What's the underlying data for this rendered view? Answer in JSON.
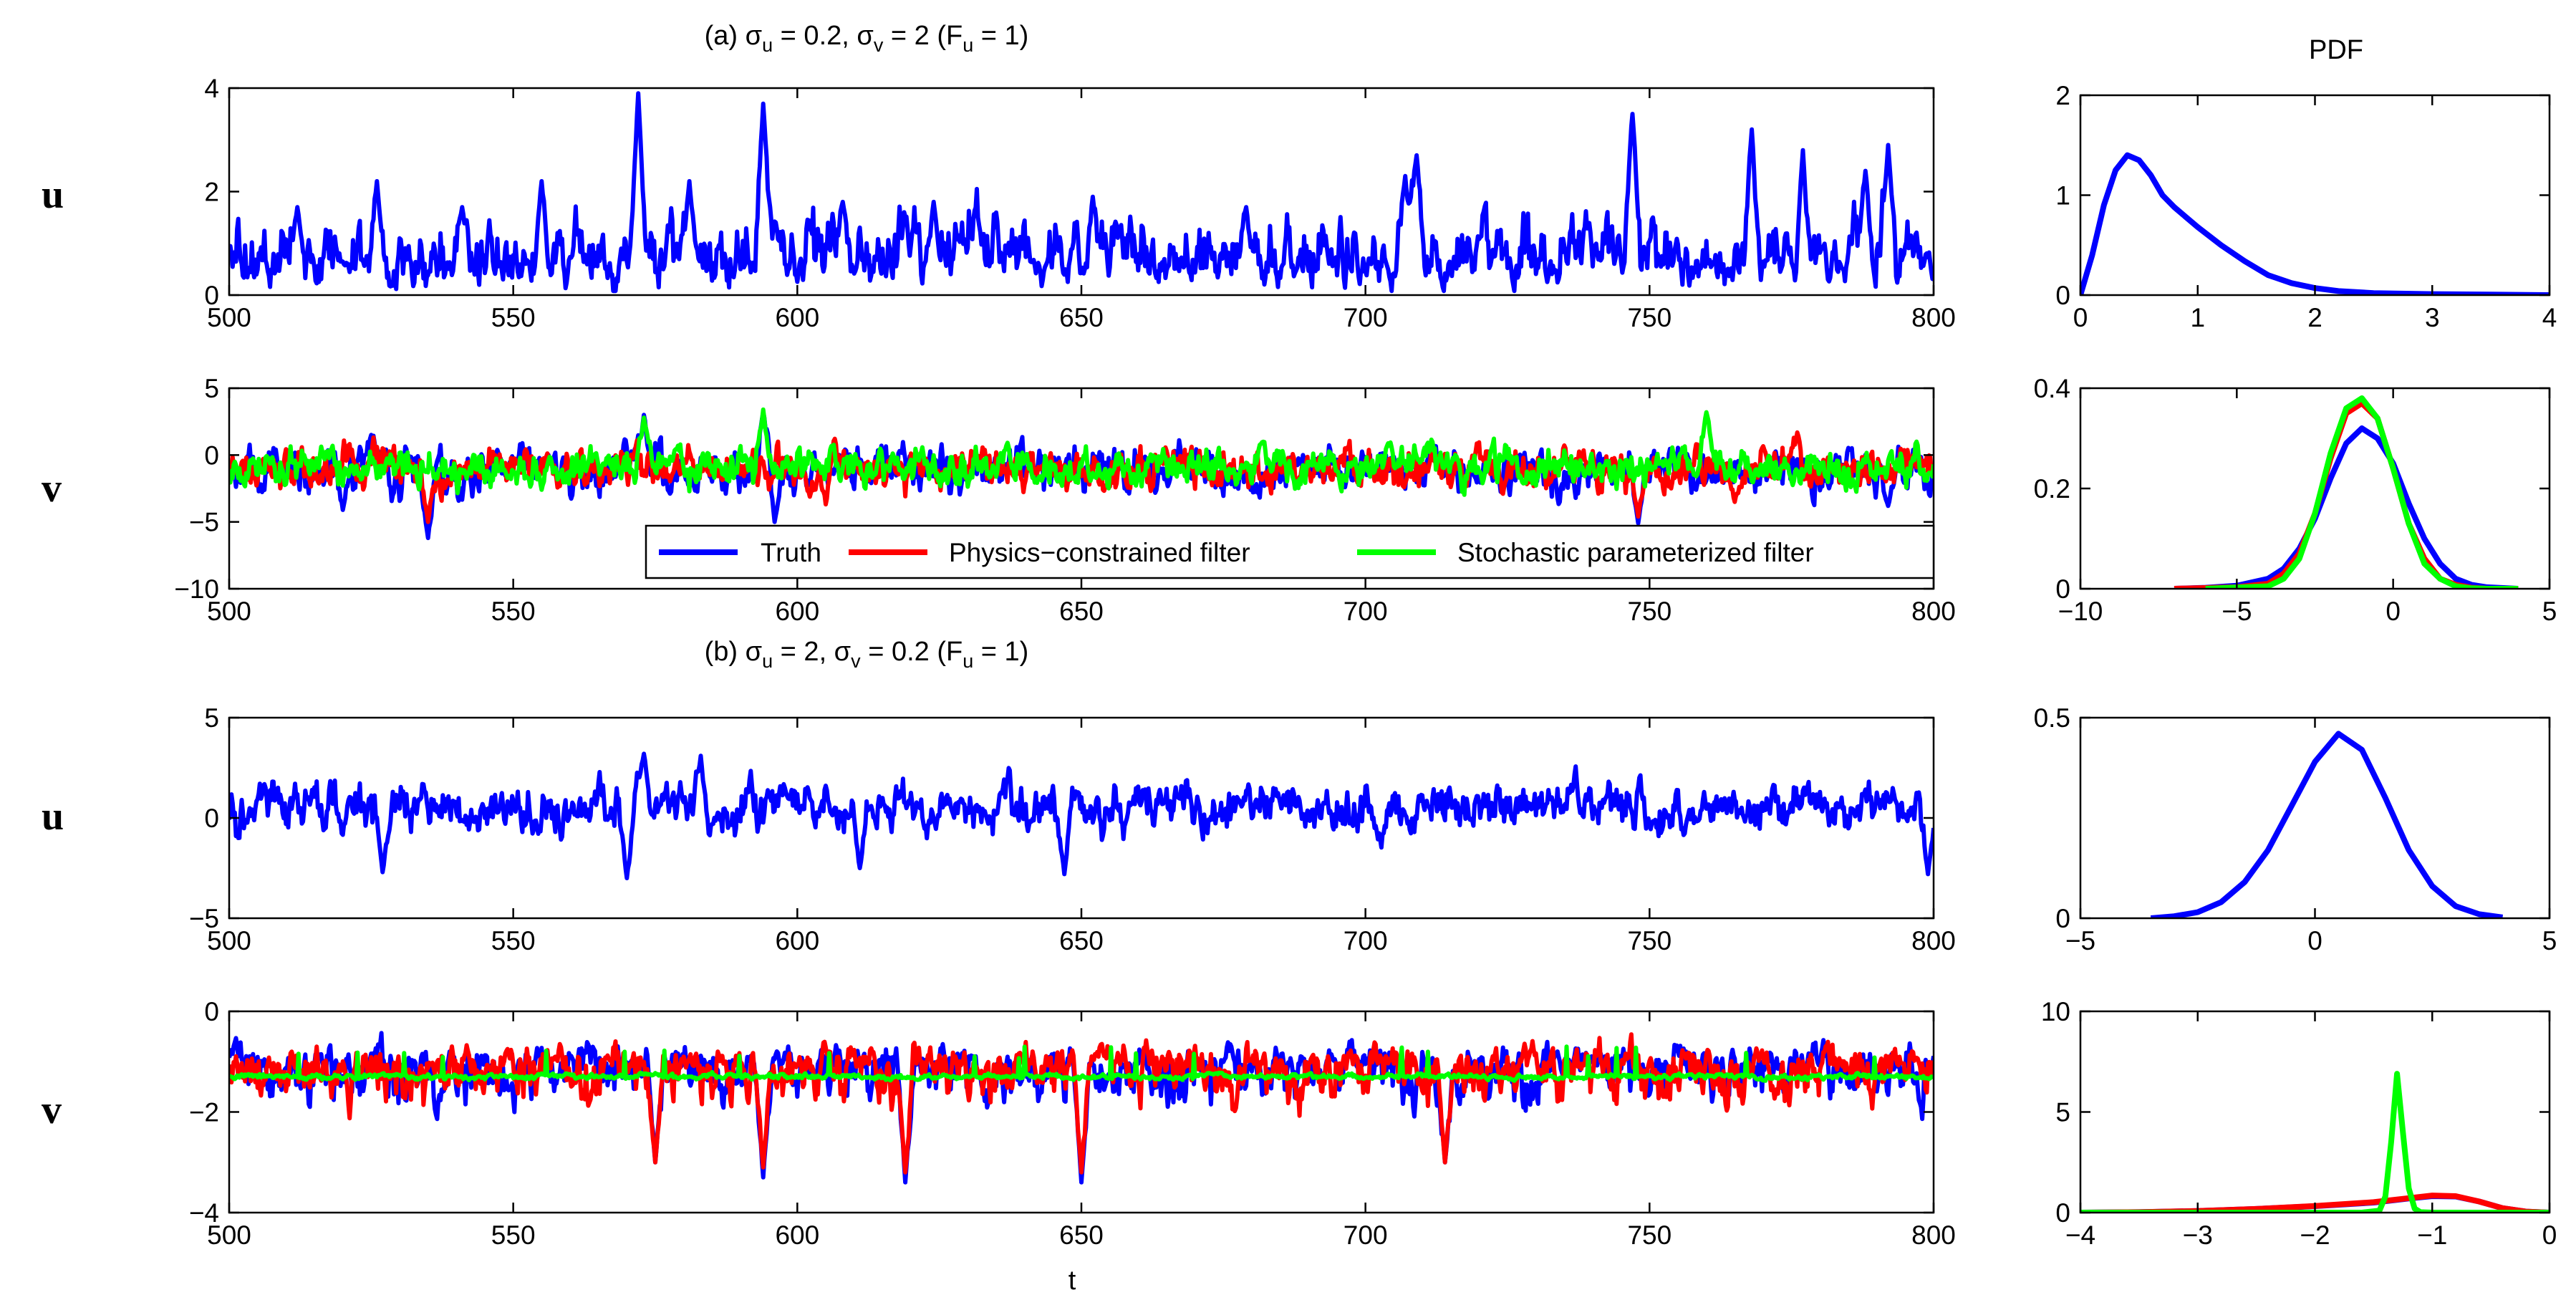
{
  "titles": {
    "a": {
      "prefix": "(a)",
      "su": "0.2",
      "sv": "2",
      "fu": "1"
    },
    "b": {
      "prefix": "(b)",
      "su": "2",
      "sv": "0.2",
      "fu": "1"
    },
    "pdf": "PDF",
    "sigma": "σ",
    "u": "u",
    "v": "v",
    "F": "F"
  },
  "legend": [
    "Truth",
    "Physics−constrained filter",
    "Stochastic parameterized filter"
  ],
  "colors": {
    "truth": "#0000ff",
    "physics": "#ff0000",
    "stochastic": "#00ff00"
  },
  "chart_data": [
    {
      "id": "a-u-ts",
      "type": "line",
      "row_label": "u",
      "xlabel": "",
      "xlim": [
        500,
        800
      ],
      "ylim": [
        0,
        4
      ],
      "xticks": [
        "500",
        "550",
        "600",
        "650",
        "700",
        "750",
        "800"
      ],
      "yticks": [
        "0",
        "2",
        "4"
      ],
      "series": [
        {
          "name": "Truth",
          "color": "#0000ff",
          "kind": "pos",
          "mean": 0.7,
          "spread": 0.45,
          "spikes": [
            [
              512,
              1.7
            ],
            [
              526,
              2.2
            ],
            [
              541,
              1.7
            ],
            [
              555,
              2.2
            ],
            [
              572,
              3.9
            ],
            [
              581,
              2.2
            ],
            [
              594,
              3.7
            ],
            [
              608,
              1.8
            ],
            [
              624,
              1.8
            ],
            [
              652,
              1.9
            ],
            [
              679,
              1.7
            ],
            [
              707,
              2.3
            ],
            [
              709,
              2.7
            ],
            [
              747,
              3.5
            ],
            [
              768,
              3.2
            ],
            [
              777,
              2.8
            ],
            [
              788,
              2.4
            ],
            [
              792,
              2.9
            ]
          ]
        }
      ]
    },
    {
      "id": "a-v-ts",
      "type": "line",
      "row_label": "v",
      "xlabel": "",
      "xlim": [
        500,
        800
      ],
      "ylim": [
        -10,
        5
      ],
      "xticks": [
        "500",
        "550",
        "600",
        "650",
        "700",
        "750",
        "800"
      ],
      "yticks": [
        "-10",
        "-5",
        "0",
        "5"
      ],
      "legend_position": "bottom-right",
      "series": [
        {
          "name": "Truth",
          "color": "#0000ff",
          "kind": "noise",
          "mean": -1.0,
          "spread": 1.6,
          "spikes": [
            [
              535,
              -6.2
            ],
            [
              520,
              -4.1
            ],
            [
              596,
              -5.0
            ],
            [
              748,
              -5.1
            ],
            [
              792,
              -3.8
            ],
            [
              573,
              3.0
            ],
            [
              594,
              3.2
            ]
          ]
        },
        {
          "name": "Physics-constrained filter",
          "color": "#ff0000",
          "kind": "noise",
          "mean": -1.0,
          "spread": 1.45,
          "spikes": [
            [
              535,
              -5.0
            ],
            [
              748,
              -4.6
            ],
            [
              765,
              -3.5
            ]
          ]
        },
        {
          "name": "Stochastic parameterized filter",
          "color": "#00ff00",
          "kind": "noise",
          "mean": -0.9,
          "spread": 1.3,
          "spikes": [
            [
              594,
              3.4
            ],
            [
              573,
              2.8
            ],
            [
              760,
              3.2
            ]
          ]
        }
      ]
    },
    {
      "id": "b-u-ts",
      "type": "line",
      "row_label": "u",
      "xlabel": "",
      "xlim": [
        500,
        800
      ],
      "ylim": [
        -5,
        5
      ],
      "xticks": [
        "500",
        "550",
        "600",
        "650",
        "700",
        "750",
        "800"
      ],
      "yticks": [
        "-5",
        "0",
        "5"
      ],
      "series": [
        {
          "name": "Truth",
          "color": "#0000ff",
          "kind": "noise",
          "mean": 0.5,
          "spread": 1.1,
          "spikes": [
            [
              570,
              -3.0
            ],
            [
              527,
              -2.7
            ],
            [
              647,
              -2.8
            ],
            [
              611,
              -2.5
            ],
            [
              573,
              3.2
            ],
            [
              583,
              3.1
            ],
            [
              799,
              -2.8
            ]
          ]
        }
      ]
    },
    {
      "id": "b-v-ts",
      "type": "line",
      "row_label": "v",
      "xlabel": "t",
      "xlim": [
        500,
        800
      ],
      "ylim": [
        -4,
        0
      ],
      "xticks": [
        "500",
        "550",
        "600",
        "650",
        "700",
        "750",
        "800"
      ],
      "yticks": [
        "-4",
        "-2",
        "0"
      ],
      "series": [
        {
          "name": "Truth",
          "color": "#0000ff",
          "kind": "skew",
          "mean": -1.1,
          "spread": 0.35,
          "spikes": [
            [
              619,
              -3.4
            ],
            [
              650,
              -3.4
            ],
            [
              575,
              -3.0
            ],
            [
              594,
              -3.3
            ],
            [
              714,
              -3.0
            ]
          ]
        },
        {
          "name": "Physics-constrained filter",
          "color": "#ff0000",
          "kind": "skew",
          "mean": -1.1,
          "spread": 0.35,
          "spikes": [
            [
              619,
              -3.2
            ],
            [
              650,
              -3.2
            ],
            [
              575,
              -3.0
            ],
            [
              594,
              -3.1
            ],
            [
              714,
              -3.0
            ]
          ]
        },
        {
          "name": "Stochastic parameterized filter",
          "color": "#00ff00",
          "kind": "flat",
          "mean": -1.3,
          "spread": 0.05,
          "spikes": []
        }
      ]
    },
    {
      "id": "a-u-pdf",
      "type": "line",
      "xlim": [
        0,
        4
      ],
      "ylim": [
        0,
        2
      ],
      "xticks": [
        "0",
        "1",
        "2",
        "3",
        "4"
      ],
      "yticks": [
        "0",
        "1",
        "2"
      ],
      "series": [
        {
          "name": "Truth",
          "color": "#0000ff",
          "x": [
            0,
            0.1,
            0.2,
            0.3,
            0.4,
            0.5,
            0.6,
            0.7,
            0.8,
            0.9,
            1.0,
            1.2,
            1.4,
            1.6,
            1.8,
            2.0,
            2.2,
            2.5,
            3.0,
            3.5,
            4.0
          ],
          "y": [
            0,
            0.4,
            0.9,
            1.25,
            1.4,
            1.35,
            1.2,
            1.0,
            0.88,
            0.78,
            0.68,
            0.5,
            0.34,
            0.2,
            0.12,
            0.07,
            0.04,
            0.02,
            0.01,
            0.005,
            0
          ]
        }
      ]
    },
    {
      "id": "a-v-pdf",
      "type": "line",
      "xlim": [
        -10,
        5
      ],
      "ylim": [
        0,
        0.4
      ],
      "xticks": [
        "-10",
        "-5",
        "0",
        "5"
      ],
      "yticks": [
        "0",
        "0.2",
        "0.4"
      ],
      "series": [
        {
          "name": "Truth",
          "color": "#0000ff",
          "x": [
            -7,
            -6,
            -5,
            -4,
            -3.5,
            -3,
            -2.5,
            -2,
            -1.5,
            -1,
            -0.5,
            0,
            0.5,
            1,
            1.5,
            2,
            2.5,
            3,
            4
          ],
          "y": [
            0,
            0.002,
            0.006,
            0.02,
            0.04,
            0.08,
            0.14,
            0.22,
            0.29,
            0.32,
            0.3,
            0.25,
            0.17,
            0.1,
            0.05,
            0.02,
            0.008,
            0.003,
            0
          ]
        },
        {
          "name": "Physics-constrained filter",
          "color": "#ff0000",
          "x": [
            -7,
            -5,
            -4,
            -3.5,
            -3,
            -2.5,
            -2,
            -1.5,
            -1,
            -0.5,
            0,
            0.5,
            1,
            1.5,
            2,
            2.5,
            3,
            4
          ],
          "y": [
            0,
            0.003,
            0.01,
            0.03,
            0.07,
            0.15,
            0.26,
            0.35,
            0.37,
            0.34,
            0.24,
            0.13,
            0.06,
            0.02,
            0.008,
            0.002,
            0,
            0
          ]
        },
        {
          "name": "Stochastic parameterized filter",
          "color": "#00ff00",
          "x": [
            -6,
            -4,
            -3.5,
            -3,
            -2.5,
            -2,
            -1.5,
            -1,
            -0.5,
            0,
            0.5,
            1,
            1.5,
            2,
            2.5,
            3,
            4
          ],
          "y": [
            0,
            0.005,
            0.02,
            0.06,
            0.15,
            0.27,
            0.36,
            0.38,
            0.34,
            0.24,
            0.13,
            0.05,
            0.02,
            0.005,
            0.001,
            0,
            0
          ]
        }
      ]
    },
    {
      "id": "b-u-pdf",
      "type": "line",
      "xlim": [
        -5,
        5
      ],
      "ylim": [
        0,
        0.5
      ],
      "xticks": [
        "-5",
        "0",
        "5"
      ],
      "yticks": [
        "0",
        "0.5"
      ],
      "series": [
        {
          "name": "Truth",
          "color": "#0000ff",
          "x": [
            -3.5,
            -3,
            -2.5,
            -2,
            -1.5,
            -1,
            -0.5,
            0,
            0.5,
            1,
            1.5,
            2,
            2.5,
            3,
            3.5,
            4
          ],
          "y": [
            0,
            0.005,
            0.015,
            0.04,
            0.09,
            0.17,
            0.28,
            0.39,
            0.46,
            0.42,
            0.3,
            0.17,
            0.08,
            0.03,
            0.01,
            0.002
          ]
        }
      ]
    },
    {
      "id": "b-v-pdf",
      "type": "line",
      "xlim": [
        -4,
        0
      ],
      "ylim": [
        0,
        10
      ],
      "xticks": [
        "-4",
        "-3",
        "-2",
        "-1",
        "0"
      ],
      "yticks": [
        "0",
        "5",
        "10"
      ],
      "series": [
        {
          "name": "Truth",
          "color": "#0000ff",
          "x": [
            -4,
            -3.5,
            -3,
            -2.5,
            -2,
            -1.5,
            -1.2,
            -1,
            -0.8,
            -0.6,
            -0.4,
            -0.2,
            0
          ],
          "y": [
            0,
            0.02,
            0.08,
            0.18,
            0.32,
            0.5,
            0.7,
            0.82,
            0.8,
            0.55,
            0.22,
            0.05,
            0
          ]
        },
        {
          "name": "Physics-constrained filter",
          "color": "#ff0000",
          "x": [
            -4,
            -3.5,
            -3,
            -2.5,
            -2,
            -1.5,
            -1.2,
            -1,
            -0.8,
            -0.6,
            -0.4,
            -0.2,
            0
          ],
          "y": [
            0,
            0.02,
            0.08,
            0.18,
            0.33,
            0.52,
            0.72,
            0.85,
            0.82,
            0.55,
            0.22,
            0.05,
            0
          ]
        },
        {
          "name": "Stochastic parameterized filter",
          "color": "#00ff00",
          "x": [
            -4,
            -1.6,
            -1.45,
            -1.4,
            -1.35,
            -1.3,
            -1.25,
            -1.2,
            -1.15,
            -1.1,
            -1.0,
            0
          ],
          "y": [
            0,
            0,
            0.1,
            0.8,
            3.5,
            6.9,
            4.0,
            1.2,
            0.2,
            0.02,
            0,
            0
          ]
        }
      ]
    }
  ]
}
